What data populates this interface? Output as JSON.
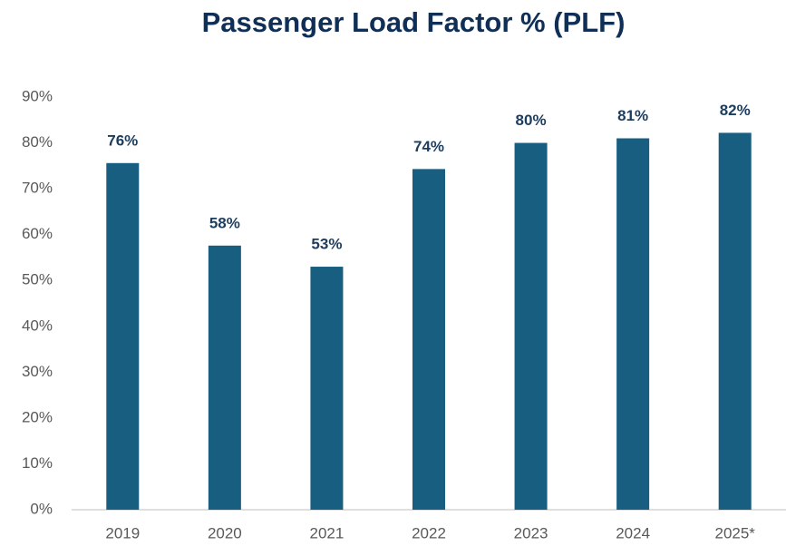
{
  "chart_data": {
    "type": "bar",
    "title": "Passenger Load Factor % (PLF)",
    "categories": [
      "2019",
      "2020",
      "2021",
      "2022",
      "2023",
      "2024",
      "2025*"
    ],
    "values": [
      75.6,
      57.6,
      53.0,
      74.3,
      80.0,
      81.0,
      82.2
    ],
    "value_labels": [
      "76%",
      "58%",
      "53%",
      "74%",
      "80%",
      "81%",
      "82%"
    ],
    "color": "#175e80",
    "ylim": [
      0,
      90
    ],
    "yticks": [
      {
        "value": 0,
        "label": "0%"
      },
      {
        "value": 10,
        "label": "10%"
      },
      {
        "value": 20,
        "label": "20%"
      },
      {
        "value": 30,
        "label": "30%"
      },
      {
        "value": 40,
        "label": "40%"
      },
      {
        "value": 50,
        "label": "50%"
      },
      {
        "value": 60,
        "label": "60%"
      },
      {
        "value": 70,
        "label": "70%"
      },
      {
        "value": 80,
        "label": "80%"
      },
      {
        "value": 90,
        "label": "90%"
      }
    ],
    "grid": false
  }
}
